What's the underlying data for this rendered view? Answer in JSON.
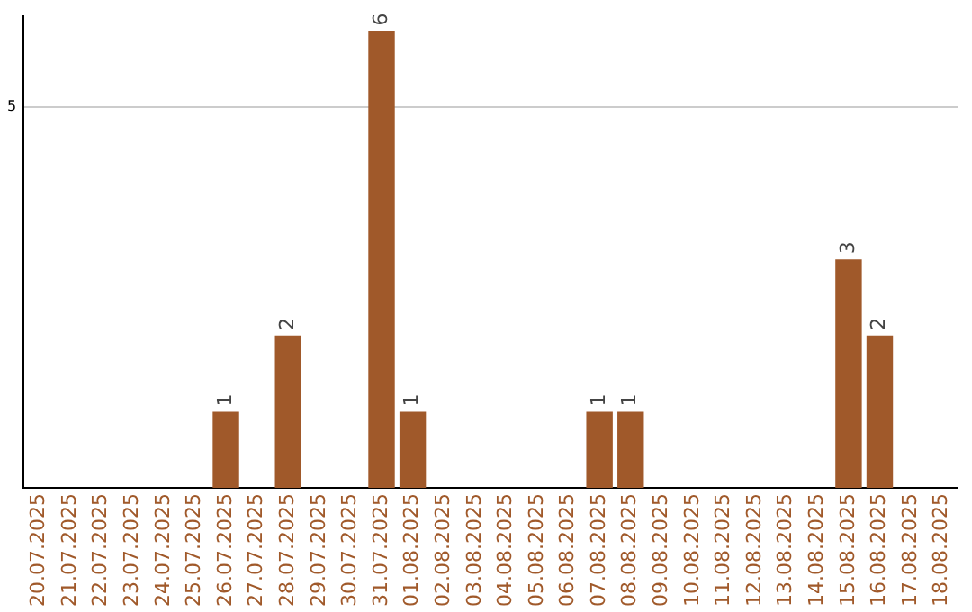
{
  "chart_data": {
    "type": "bar",
    "categories": [
      "20.07.2025",
      "21.07.2025",
      "22.07.2025",
      "23.07.2025",
      "24.07.2025",
      "25.07.2025",
      "26.07.2025",
      "27.07.2025",
      "28.07.2025",
      "29.07.2025",
      "30.07.2025",
      "31.07.2025",
      "01.08.2025",
      "02.08.2025",
      "03.08.2025",
      "04.08.2025",
      "05.08.2025",
      "06.08.2025",
      "07.08.2025",
      "08.08.2025",
      "09.08.2025",
      "10.08.2025",
      "11.08.2025",
      "12.08.2025",
      "13.08.2025",
      "14.08.2025",
      "15.08.2025",
      "16.08.2025",
      "17.08.2025",
      "18.08.2025"
    ],
    "values": [
      null,
      null,
      null,
      null,
      null,
      null,
      1,
      null,
      2,
      null,
      null,
      6,
      1,
      null,
      null,
      null,
      null,
      null,
      1,
      1,
      null,
      null,
      null,
      null,
      null,
      null,
      3,
      2,
      null,
      null
    ],
    "color": "#a0592a",
    "ylim": [
      0,
      6.2
    ],
    "yticks": [
      5
    ],
    "grid": "y",
    "data_labels": true
  }
}
